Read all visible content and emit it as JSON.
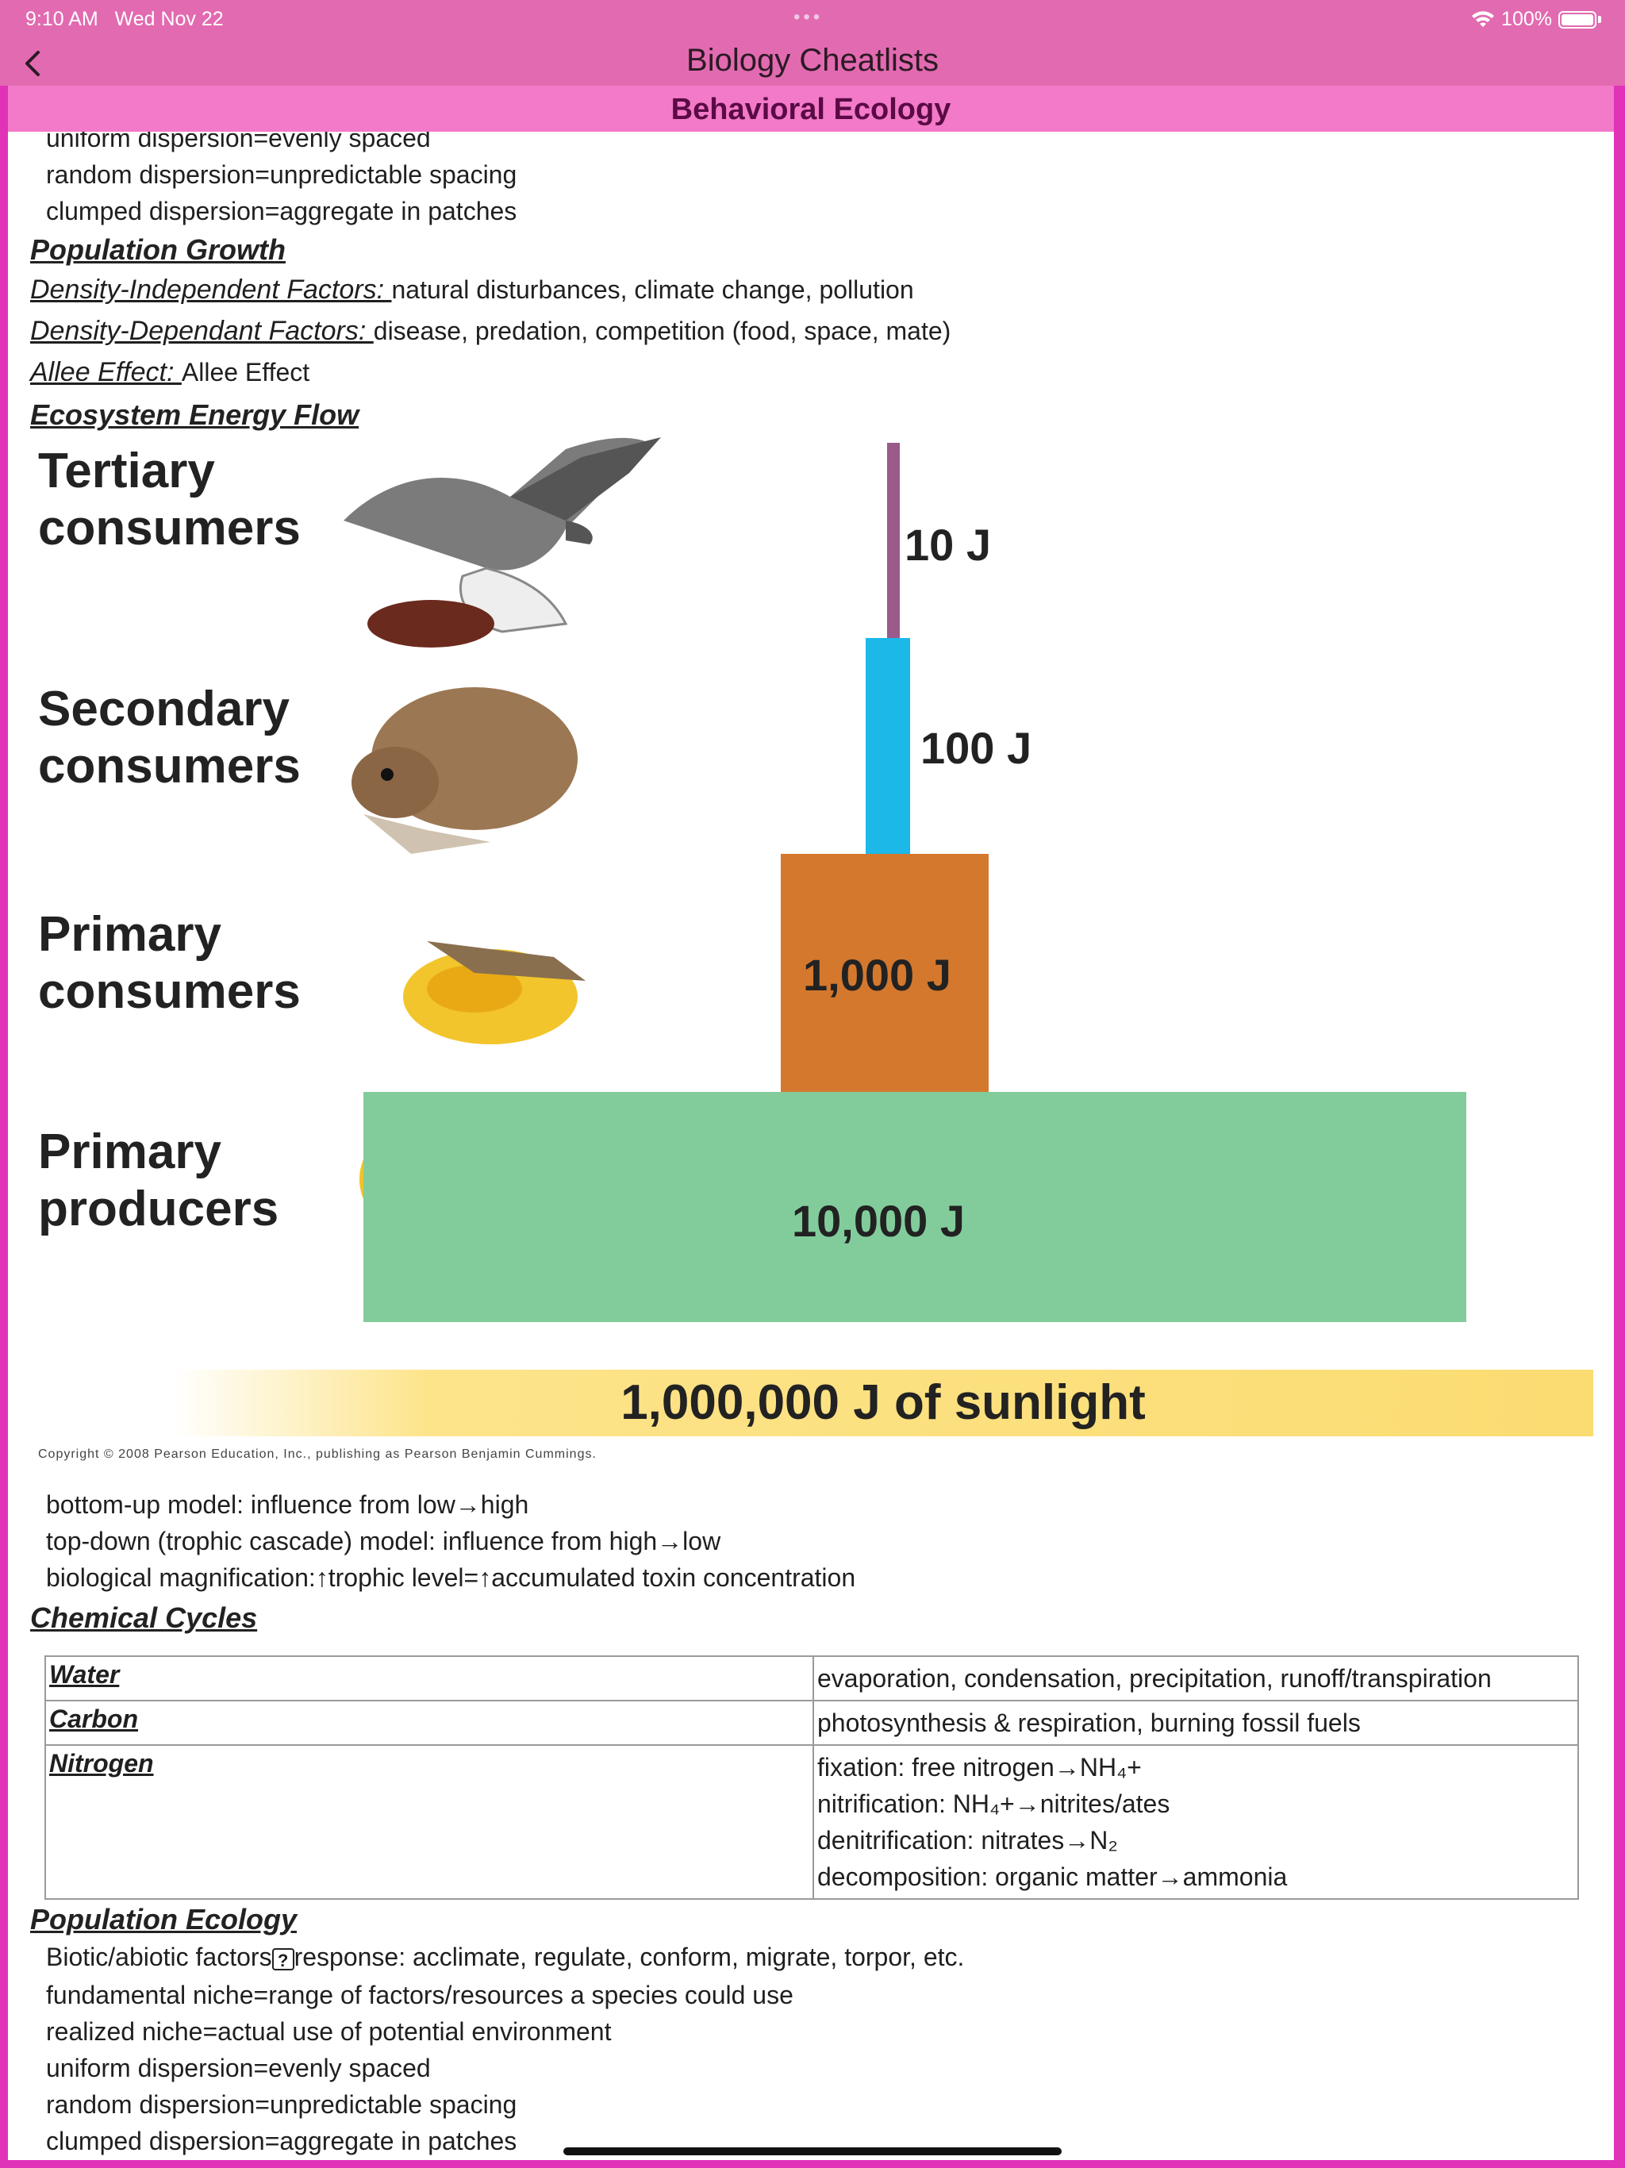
{
  "status": {
    "time": "9:10 AM",
    "date": "Wed Nov 22",
    "battery": "100%"
  },
  "nav": {
    "title": "Biology Cheatlists"
  },
  "section": {
    "title": "Behavioral Ecology"
  },
  "top_lines": [
    "uniform dispersion=evenly spaced",
    "random dispersion=unpredictable spacing",
    "clumped dispersion=aggregate in patches"
  ],
  "population_growth": {
    "heading": "Population Growth",
    "items": [
      {
        "label": "Density-Independent Factors: ",
        "value": "natural disturbances, climate change, pollution"
      },
      {
        "label": "Density-Dependant Factors: ",
        "value": "disease, predation, competition (food, space, mate)"
      },
      {
        "label": "Allee Effect: ",
        "value": "Allee Effect"
      }
    ]
  },
  "energy_flow": {
    "heading": "Ecosystem Energy Flow",
    "levels": [
      {
        "label1": "Tertiary",
        "label2": "consumers",
        "energy": "10 J"
      },
      {
        "label1": "Secondary",
        "label2": "consumers",
        "energy": "100 J"
      },
      {
        "label1": "Primary",
        "label2": "consumers",
        "energy": "1,000 J"
      },
      {
        "label1": "Primary",
        "label2": "producers",
        "energy": "10,000 J"
      }
    ],
    "sunlight": "1,000,000 J of sunlight",
    "credit": "Copyright © 2008 Pearson Education, Inc., publishing as Pearson Benjamin Cummings.",
    "colors": {
      "tertiary": "#9a5a8a",
      "secondary": "#1bb8e8",
      "primary_consumers": "#d4782e",
      "producers": "#82cc9c",
      "sun": "#fbdc72"
    }
  },
  "energy_notes": [
    "bottom-up model: influence from low→high",
    "top-down (trophic cascade) model: influence from high→low",
    "biological magnification:↑trophic level=↑accumulated toxin concentration"
  ],
  "chemical_cycles": {
    "heading": "Chemical Cycles",
    "rows": [
      {
        "key": "Water",
        "lines": [
          "evaporation, condensation, precipitation, runoff/transpiration"
        ]
      },
      {
        "key": "Carbon",
        "lines": [
          "photosynthesis & respiration, burning fossil fuels"
        ]
      },
      {
        "key": "Nitrogen",
        "lines": [
          "fixation: free nitrogen→NH₄+",
          "nitrification: NH₄+→nitrites/ates",
          "denitrification: nitrates→N₂",
          "decomposition: organic matter→ammonia"
        ]
      }
    ]
  },
  "population_ecology": {
    "heading": "Population Ecology",
    "first_line_a": "Biotic/abiotic factors",
    "first_line_icon": "?",
    "first_line_b": "response: acclimate, regulate, conform, migrate, torpor, etc.",
    "lines": [
      "fundamental niche=range of factors/resources a species could use",
      "realized niche=actual use of potential environment",
      "uniform dispersion=evenly spaced",
      "random dispersion=unpredictable spacing",
      "clumped dispersion=aggregate in patches"
    ]
  }
}
